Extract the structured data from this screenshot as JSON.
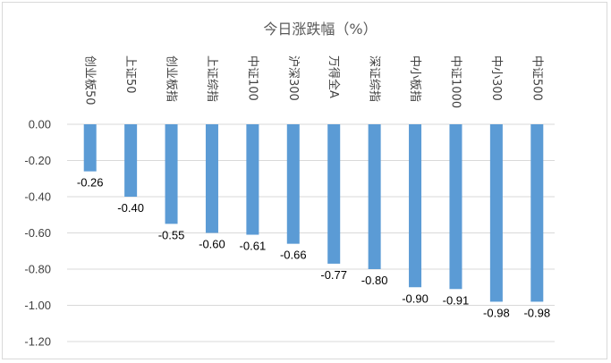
{
  "chart_data": {
    "type": "bar",
    "title": "今日涨跌幅（%）",
    "categories": [
      "创业板50",
      "上证50",
      "创业板指",
      "上证综指",
      "中证100",
      "沪深300",
      "万得全A",
      "深证综指",
      "中小板指",
      "中证1000",
      "中小300",
      "中证500"
    ],
    "values": [
      -0.26,
      -0.4,
      -0.55,
      -0.6,
      -0.61,
      -0.66,
      -0.77,
      -0.8,
      -0.9,
      -0.91,
      -0.98,
      -0.98
    ],
    "data_labels": [
      "-0.26",
      "-0.40",
      "-0.55",
      "-0.60",
      "-0.61",
      "-0.66",
      "-0.77",
      "-0.80",
      "-0.90",
      "-0.91",
      "-0.98",
      "-0.98"
    ],
    "yticks": [
      "0.00",
      "-0.20",
      "-0.40",
      "-0.60",
      "-0.80",
      "-1.00",
      "-1.20"
    ],
    "ylim": [
      -1.2,
      0
    ],
    "grid": true,
    "bar_color": "#5b9bd5",
    "grid_color": "#d9d9d9"
  }
}
